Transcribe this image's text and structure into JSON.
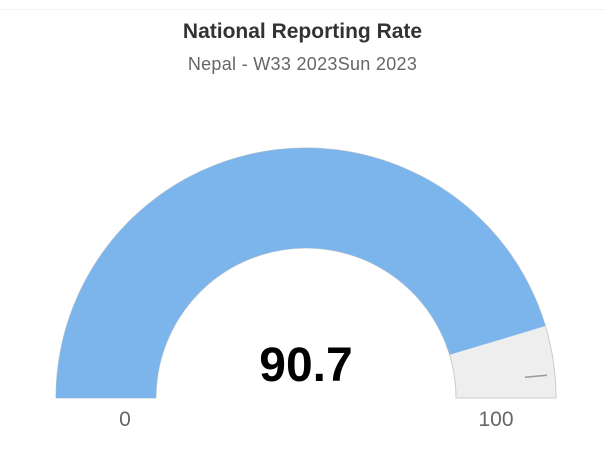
{
  "chart_data": {
    "type": "gauge",
    "title": "National Reporting Rate",
    "subtitle": "Nepal - W33 2023Sun 2023",
    "value": 90.7,
    "value_label": "90.7",
    "min": 0,
    "max": 100,
    "min_label": "0",
    "max_label": "100",
    "fill_color": "#7cb5ec",
    "track_color": "#eeeeee"
  }
}
